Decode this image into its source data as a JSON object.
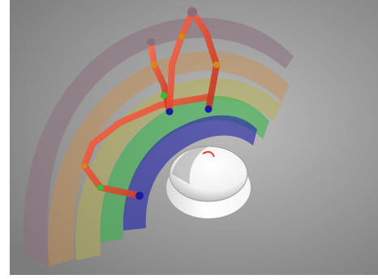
{
  "scene": {
    "description_colors": {
      "background_light": "#b4b4b4",
      "background_dark": "#7a7a7a",
      "shell_violet": "#8a6e7c",
      "shell_orange": "#c98c4a",
      "shell_yellow": "#b8b04a",
      "shell_green": "#39b24a",
      "shell_blue": "#2a2aa8",
      "link_red": "#e8402a",
      "joint_orange": "#d08a1a",
      "joint_green": "#2fbf3a",
      "joint_blue": "#1a1aa0",
      "sphere": "#ffffff"
    },
    "icons": [
      "robot-finger-chain",
      "joint-marker",
      "hemisphere-object"
    ]
  }
}
